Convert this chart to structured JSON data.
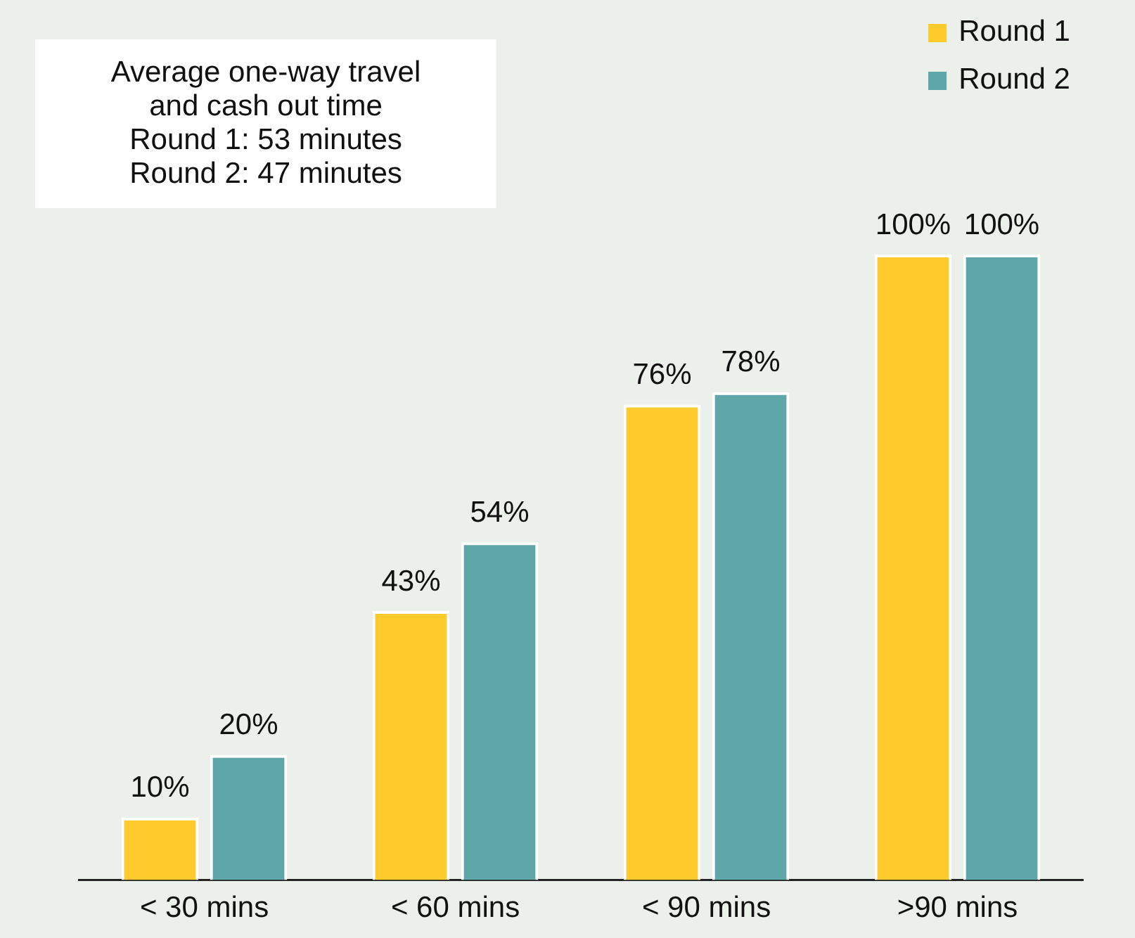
{
  "chart_data": {
    "type": "bar",
    "categories": [
      "< 30 mins",
      "< 60 mins",
      "< 90 mins",
      ">90 mins"
    ],
    "series": [
      {
        "name": "Round 1",
        "color": "#ffca2c",
        "values": [
          10,
          43,
          76,
          100
        ],
        "value_labels": [
          "10%",
          "43%",
          "76%",
          "100%"
        ]
      },
      {
        "name": "Round 2",
        "color": "#5fa6a8",
        "values": [
          20,
          54,
          78,
          100
        ],
        "value_labels": [
          "20%",
          "54%",
          "78%",
          "100%"
        ]
      }
    ],
    "annotations": [
      "Average one-way travel",
      "and cash out time",
      "Round 1: 53 minutes",
      "Round 2: 47 minutes"
    ],
    "legend": "top right",
    "grid": false
  }
}
